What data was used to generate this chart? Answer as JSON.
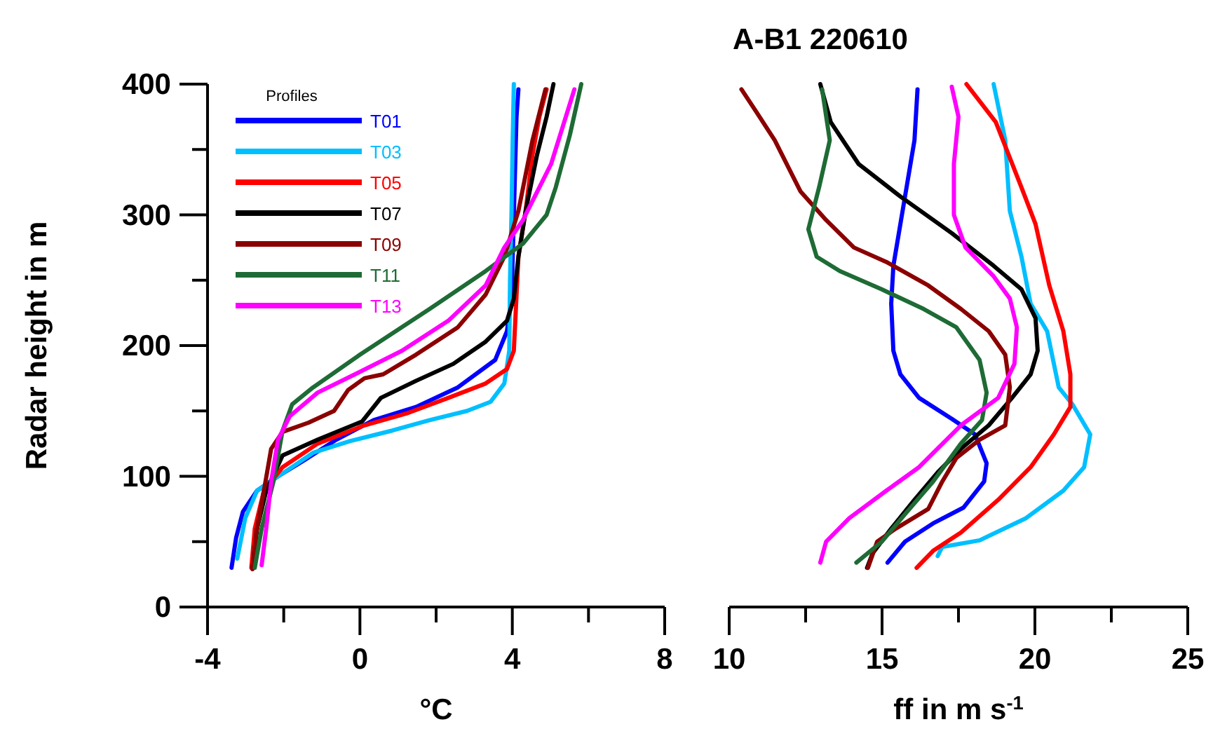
{
  "chart_data": [
    {
      "type": "line",
      "xlabel": "°C",
      "ylabel": "Radar height in m",
      "legend": "top left",
      "legend_title": "Profiles",
      "xlim": [
        -4,
        8
      ],
      "xticks": [
        -4,
        {
          "value": -2,
          "label": null
        },
        0,
        {
          "value": 2,
          "label": null
        },
        4,
        {
          "value": 6,
          "label": null
        },
        8
      ],
      "ylim": [
        0,
        400
      ],
      "yticks": [
        0,
        {
          "value": 50,
          "label": null
        },
        100,
        {
          "value": 150,
          "label": null
        },
        200,
        {
          "value": 250,
          "label": null
        },
        300,
        {
          "value": 350,
          "label": null
        },
        400
      ],
      "series": [
        {
          "name": "T01",
          "color": "#0000ff",
          "x": [
            -3.37,
            -3.25,
            -3.07,
            -2.7,
            -2.15,
            -1.48,
            -0.62,
            0.36,
            1.47,
            2.57,
            3.55,
            3.86,
            3.98,
            4.01,
            4.06,
            4.11,
            4.16
          ],
          "values": [
            30,
            53,
            73,
            89,
            100,
            112,
            128,
            143,
            153,
            168,
            189,
            211,
            236,
            268,
            321,
            375,
            396
          ]
        },
        {
          "name": "T03",
          "color": "#00bfff",
          "x": [
            -3.22,
            -3.01,
            -2.7,
            -2.09,
            -1.23,
            -0.25,
            0.85,
            1.83,
            2.81,
            3.43,
            3.79,
            3.92,
            3.94,
            3.98,
            4.01,
            4.04
          ],
          "values": [
            37,
            68,
            89,
            101,
            118,
            127,
            135,
            143,
            150,
            157,
            171,
            196,
            250,
            303,
            357,
            400
          ]
        },
        {
          "name": "T05",
          "color": "#ff0000",
          "x": [
            -2.85,
            -2.76,
            -2.52,
            -2.03,
            -1.11,
            0.12,
            1.22,
            2.32,
            3.3,
            3.86,
            4.04,
            4.1,
            4.16,
            4.35,
            4.53,
            4.71,
            4.9
          ],
          "values": [
            30,
            60,
            89,
            107,
            125,
            139,
            148,
            160,
            171,
            182,
            196,
            232,
            268,
            303,
            346,
            375,
            396
          ]
        },
        {
          "name": "T07",
          "color": "#000000",
          "x": [
            -2.82,
            -2.7,
            -2.46,
            -2.03,
            -1.11,
            0.06,
            0.55,
            1.47,
            2.45,
            3.3,
            3.86,
            4.04,
            4.16,
            4.35,
            4.65,
            4.9,
            5.08
          ],
          "values": [
            30,
            60,
            89,
            116,
            128,
            142,
            160,
            173,
            186,
            203,
            219,
            236,
            268,
            303,
            346,
            375,
            400
          ]
        },
        {
          "name": "T09",
          "color": "#8b0000",
          "x": [
            -2.82,
            -2.72,
            -2.52,
            -2.33,
            -2.03,
            -1.35,
            -0.68,
            -0.31,
            0.12,
            0.61,
            1.47,
            2.57,
            3.3,
            3.79,
            4.16,
            4.53,
            4.87
          ],
          "values": [
            29,
            57,
            89,
            121,
            134,
            141,
            150,
            166,
            175,
            178,
            193,
            214,
            239,
            268,
            303,
            357,
            396
          ]
        },
        {
          "name": "T11",
          "color": "#1e6b35",
          "x": [
            -2.76,
            -2.58,
            -2.27,
            -2.03,
            -1.78,
            -1.23,
            0.0,
            1.83,
            3.3,
            4.28,
            4.9,
            5.14,
            5.51,
            5.81
          ],
          "values": [
            30,
            60,
            96,
            135,
            155,
            168,
            193,
            228,
            257,
            278,
            300,
            321,
            361,
            400
          ]
        },
        {
          "name": "T13",
          "color": "#ff00ff",
          "x": [
            -2.58,
            -2.46,
            -2.33,
            -2.15,
            -1.84,
            -1.11,
            -0.13,
            1.1,
            2.32,
            3.3,
            3.79,
            4.28,
            5.02,
            5.63
          ],
          "values": [
            32,
            60,
            96,
            128,
            146,
            164,
            178,
            196,
            219,
            246,
            275,
            296,
            339,
            396
          ]
        }
      ]
    },
    {
      "type": "line",
      "title": "A-B1 220610",
      "xlabel": "ff in m s$^{-1}$",
      "tick_labels": "x",
      "xlim": [
        10,
        25
      ],
      "xticks": [
        10,
        {
          "value": 12.5,
          "label": null
        },
        15,
        {
          "value": 17.5,
          "label": null
        },
        20,
        {
          "value": 22.5,
          "label": null
        },
        25
      ],
      "ylim": [
        0,
        400
      ],
      "series": [
        {
          "color": "#0000ff",
          "x": [
            16.16,
            16.06,
            15.83,
            15.6,
            15.37,
            15.3,
            15.37,
            15.6,
            16.21,
            17.28,
            18.04,
            18.42,
            18.34,
            17.66,
            16.67,
            15.75,
            15.18
          ],
          "values": [
            396,
            357,
            325,
            293,
            261,
            232,
            196,
            178,
            160,
            144,
            132,
            110,
            96,
            76,
            64,
            50,
            34
          ]
        },
        {
          "color": "#00bfff",
          "x": [
            18.65,
            19.03,
            19.18,
            19.56,
            19.86,
            20.4,
            20.78,
            21.23,
            21.81,
            21.61,
            20.93,
            19.71,
            18.19,
            16.97,
            16.82
          ],
          "values": [
            400,
            357,
            303,
            268,
            232,
            211,
            168,
            155,
            132,
            107,
            89,
            68,
            51,
            46,
            39
          ]
        },
        {
          "color": "#ff0000",
          "x": [
            17.76,
            18.72,
            19.56,
            20.02,
            20.47,
            20.93,
            21.16,
            21.16,
            20.62,
            19.86,
            18.8,
            17.58,
            16.67,
            16.13
          ],
          "values": [
            400,
            371,
            321,
            293,
            246,
            211,
            178,
            153,
            132,
            107,
            82,
            57,
            43,
            30
          ]
        },
        {
          "color": "#000000",
          "x": [
            12.98,
            13.32,
            14.23,
            15.6,
            17.28,
            18.65,
            19.56,
            20.02,
            20.09,
            19.86,
            19.25,
            18.49,
            17.58,
            16.82,
            16.06,
            15.3,
            14.69,
            14.51
          ],
          "values": [
            400,
            371,
            339,
            314,
            286,
            261,
            243,
            221,
            196,
            178,
            160,
            139,
            121,
            103,
            82,
            60,
            41,
            30
          ]
        },
        {
          "color": "#8b0000",
          "x": [
            10.4,
            10.88,
            11.49,
            12.33,
            13.17,
            14.08,
            15.14,
            16.51,
            17.58,
            18.49,
            19.03,
            19.18,
            19.03,
            18.19,
            17.43,
            16.97,
            16.51,
            15.45,
            14.84,
            14.54
          ],
          "values": [
            396,
            379,
            357,
            318,
            296,
            275,
            264,
            246,
            228,
            211,
            193,
            168,
            139,
            128,
            114,
            96,
            75,
            60,
            50,
            30
          ]
        },
        {
          "color": "#1e6b35",
          "x": [
            13.04,
            13.29,
            12.94,
            12.59,
            12.86,
            13.62,
            14.99,
            16.36,
            17.43,
            18.19,
            18.42,
            18.27,
            17.58,
            16.67,
            15.75,
            14.99,
            14.16
          ],
          "values": [
            396,
            357,
            321,
            289,
            268,
            257,
            243,
            228,
            214,
            189,
            164,
            143,
            125,
            96,
            71,
            50,
            34
          ]
        },
        {
          "color": "#ff00ff",
          "x": [
            17.28,
            17.5,
            17.35,
            17.35,
            17.73,
            18.65,
            19.18,
            19.41,
            19.33,
            18.8,
            17.58,
            16.21,
            15.14,
            13.93,
            13.17,
            12.98
          ],
          "values": [
            398,
            375,
            339,
            300,
            275,
            253,
            236,
            214,
            186,
            160,
            139,
            107,
            89,
            68,
            50,
            34
          ]
        }
      ]
    }
  ]
}
